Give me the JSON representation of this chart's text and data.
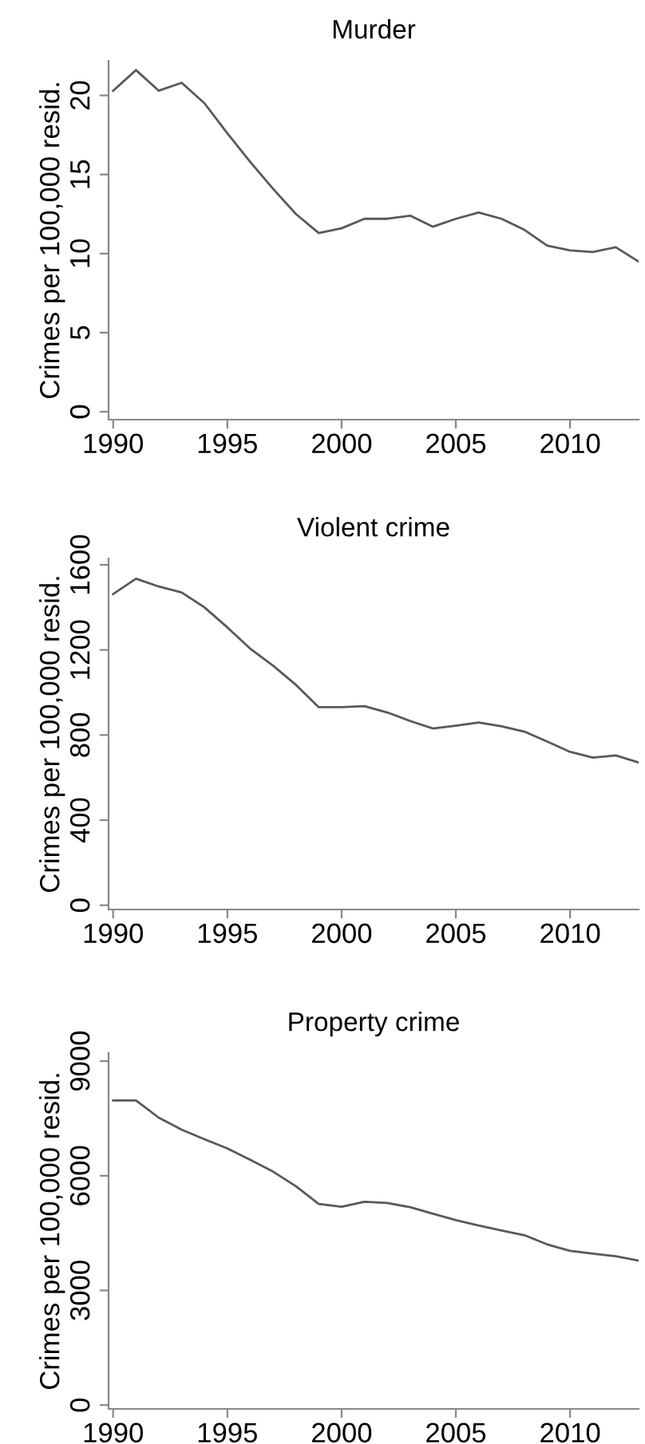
{
  "chart_data": [
    {
      "type": "line",
      "title": "Murder",
      "ylabel": "Crimes per 100,000 resid.",
      "x": [
        1990,
        1991,
        1992,
        1993,
        1994,
        1995,
        1996,
        1997,
        1998,
        1999,
        2000,
        2001,
        2002,
        2003,
        2004,
        2005,
        2006,
        2007,
        2008,
        2009,
        2010,
        2011,
        2012,
        2013
      ],
      "series": [
        {
          "color": "#595959",
          "values": [
            20.3,
            21.6,
            20.3,
            20.8,
            19.5,
            17.6,
            15.8,
            14.1,
            12.5,
            11.3,
            11.6,
            12.2,
            12.2,
            12.4,
            11.7,
            12.2,
            12.6,
            12.2,
            11.5,
            10.5,
            10.2,
            10.1,
            10.4,
            9.5
          ]
        }
      ],
      "xlim": [
        1989.8,
        2013
      ],
      "ylim": [
        -0.5,
        22.2
      ],
      "xticks": [
        1990,
        1995,
        2000,
        2005,
        2010
      ],
      "yticks": [
        0,
        5,
        10,
        15,
        20
      ],
      "grid": false,
      "legend": false
    },
    {
      "type": "line",
      "title": "Violent crime",
      "ylabel": "Crimes per 100,000 resid.",
      "x": [
        1990,
        1991,
        1992,
        1993,
        1994,
        1995,
        1996,
        1997,
        1998,
        1999,
        2000,
        2001,
        2002,
        2003,
        2004,
        2005,
        2006,
        2007,
        2008,
        2009,
        2010,
        2011,
        2012,
        2013
      ],
      "series": [
        {
          "color": "#595959",
          "values": [
            1463,
            1535,
            1498,
            1470,
            1400,
            1306,
            1206,
            1126,
            1036,
            931,
            931,
            936,
            906,
            866,
            831,
            844,
            859,
            841,
            816,
            769,
            721,
            694,
            704,
            671
          ]
        }
      ],
      "xlim": [
        1989.8,
        2013
      ],
      "ylim": [
        -20,
        1630
      ],
      "xticks": [
        1990,
        1995,
        2000,
        2005,
        2010
      ],
      "yticks": [
        0,
        400,
        800,
        1200,
        1600
      ],
      "grid": false,
      "legend": false
    },
    {
      "type": "line",
      "title": "Property crime",
      "ylabel": "Crimes per 100,000 resid.",
      "x": [
        1990,
        1991,
        1992,
        1993,
        1994,
        1995,
        1996,
        1997,
        1998,
        1999,
        2000,
        2001,
        2002,
        2003,
        2004,
        2005,
        2006,
        2007,
        2008,
        2009,
        2010,
        2011,
        2012,
        2013
      ],
      "series": [
        {
          "color": "#595959",
          "values": [
            7970,
            7970,
            7519,
            7208,
            6954,
            6715,
            6418,
            6108,
            5727,
            5262,
            5191,
            5318,
            5290,
            5177,
            5008,
            4839,
            4697,
            4570,
            4444,
            4204,
            4034,
            3964,
            3893,
            3780
          ]
        }
      ],
      "xlim": [
        1989.8,
        2013
      ],
      "ylim": [
        -100,
        9210
      ],
      "xticks": [
        1990,
        1995,
        2000,
        2005,
        2010
      ],
      "yticks": [
        0,
        3000,
        6000,
        9000
      ],
      "grid": false,
      "legend": false
    }
  ]
}
